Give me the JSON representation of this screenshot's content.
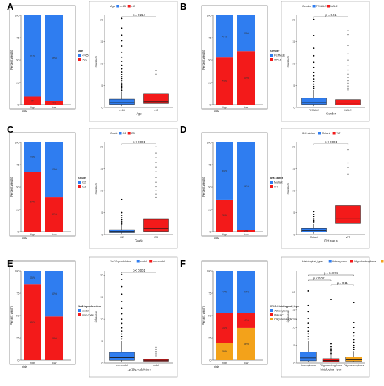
{
  "colors": {
    "blue": "#2f7df0",
    "red": "#f31a1a",
    "orange": "#f3a21a",
    "axis": "#333333",
    "box_outline": "#1a1a1a",
    "outlier": "#000000"
  },
  "panels": [
    {
      "letter": "A",
      "stack": {
        "x_title": "risk",
        "y_title": "Percent weight",
        "categories": [
          "high",
          "low"
        ],
        "legend_title": "Age",
        "legend_items": [
          {
            "label": "<=65",
            "color": "#2f7df0"
          },
          {
            "label": ">65",
            "color": "#f31a1a"
          }
        ],
        "yticks": [
          "0",
          "25",
          "50",
          "75",
          "100"
        ],
        "series": [
          {
            "name": ">65",
            "values": [
              9,
              4
            ],
            "labels": [
              "9%",
              "4%"
            ],
            "color": "#f31a1a"
          },
          {
            "name": "<=65",
            "values": [
              91,
              96
            ],
            "labels": [
              "91%",
              "96%"
            ],
            "color": "#2f7df0"
          }
        ]
      },
      "box": {
        "top_legend_title": "Age",
        "top_legend_items": [
          {
            "label": "<=65",
            "color": "#2f7df0"
          },
          {
            "label": ">65",
            "color": "#f31a1a"
          }
        ],
        "pvalue": "p = 0.214",
        "x_title": "Age",
        "y_title": "riskscore",
        "categories": [
          "<=65",
          ">65"
        ],
        "ylim": [
          0,
          21
        ],
        "yticks": [
          0,
          5,
          10,
          15,
          20
        ],
        "boxes": [
          {
            "q1": 0.7,
            "median": 1.1,
            "q3": 1.9,
            "wlo": 0.3,
            "whi": 3.6,
            "color": "#2f7df0",
            "outliers": [
              3.9,
              4.2,
              4.5,
              4.8,
              5.1,
              5.4,
              5.8,
              6.2,
              6.6,
              7.0,
              7.5,
              8.1,
              8.8,
              9.6,
              10.5,
              11.5,
              12.6,
              14.0,
              15.2,
              16.5,
              18.1,
              20.3
            ]
          },
          {
            "q1": 0.9,
            "median": 1.3,
            "q3": 3.2,
            "wlo": 0.3,
            "whi": 6.6,
            "color": "#f31a1a",
            "outliers": [
              7.6,
              8.4
            ]
          }
        ]
      }
    },
    {
      "letter": "B",
      "stack": {
        "x_title": "risk",
        "y_title": "Percent weight",
        "categories": [
          "high",
          "low"
        ],
        "legend_title": "Gender",
        "legend_items": [
          {
            "label": "FEMALE",
            "color": "#2f7df0"
          },
          {
            "label": "MALE",
            "color": "#f31a1a"
          }
        ],
        "yticks": [
          "0",
          "25",
          "50",
          "75",
          "100"
        ],
        "series": [
          {
            "name": "MALE",
            "values": [
              53,
              60
            ],
            "labels": [
              "53%",
              "60%"
            ],
            "color": "#f31a1a"
          },
          {
            "name": "FEMALE",
            "values": [
              47,
              40
            ],
            "labels": [
              "47%",
              "40%"
            ],
            "color": "#2f7df0"
          }
        ]
      },
      "box": {
        "top_legend_title": "Gender",
        "top_legend_items": [
          {
            "label": "FEMALE",
            "color": "#2f7df0"
          },
          {
            "label": "MALE",
            "color": "#f31a1a"
          }
        ],
        "pvalue": "p = 0.51",
        "x_title": "Gender",
        "y_title": "riskscore",
        "categories": [
          "FEMALE",
          "MALE"
        ],
        "ylim": [
          0,
          21
        ],
        "yticks": [
          0,
          5,
          10,
          15,
          20
        ],
        "boxes": [
          {
            "q1": 0.7,
            "median": 1.1,
            "q3": 2.1,
            "wlo": 0.3,
            "whi": 4.0,
            "color": "#2f7df0",
            "outliers": [
              4.4,
              4.8,
              5.3,
              5.9,
              6.5,
              7.2,
              8.0,
              9.1,
              10.3,
              11.8,
              13.5,
              16.4,
              20.1
            ]
          },
          {
            "q1": 0.6,
            "median": 1.0,
            "q3": 1.8,
            "wlo": 0.3,
            "whi": 3.6,
            "color": "#f31a1a",
            "outliers": [
              4.0,
              4.4,
              4.9,
              5.5,
              6.1,
              6.8,
              7.6,
              8.5,
              9.5,
              10.8,
              12.2,
              14.1,
              16.6,
              17.5
            ]
          }
        ]
      }
    },
    {
      "letter": "C",
      "stack": {
        "x_title": "risk",
        "y_title": "Percent weight",
        "categories": [
          "high",
          "low"
        ],
        "legend_title": "Grade",
        "legend_items": [
          {
            "label": "G2",
            "color": "#2f7df0"
          },
          {
            "label": "G3",
            "color": "#f31a1a"
          }
        ],
        "yticks": [
          "0",
          "25",
          "50",
          "75",
          "100"
        ],
        "series": [
          {
            "name": "G3",
            "values": [
              67,
              39
            ],
            "labels": [
              "67%",
              "39%"
            ],
            "color": "#f31a1a"
          },
          {
            "name": "G2",
            "values": [
              33,
              61
            ],
            "labels": [
              "33%",
              "61%"
            ],
            "color": "#2f7df0"
          }
        ]
      },
      "box": {
        "top_legend_title": "Grade",
        "top_legend_items": [
          {
            "label": "G2",
            "color": "#2f7df0"
          },
          {
            "label": "G3",
            "color": "#f31a1a"
          }
        ],
        "pvalue": "p < 0.001",
        "x_title": "Grade",
        "y_title": "riskscore",
        "categories": [
          "G2",
          "G3"
        ],
        "ylim": [
          0,
          21
        ],
        "yticks": [
          0,
          5,
          10,
          15,
          20
        ],
        "boxes": [
          {
            "q1": 0.4,
            "median": 0.7,
            "q3": 1.1,
            "wlo": 0.2,
            "whi": 2.1,
            "color": "#2f7df0",
            "outliers": [
              2.4,
              2.7,
              3.0,
              3.4,
              3.8,
              4.3,
              5.0,
              8.0
            ]
          },
          {
            "q1": 0.7,
            "median": 1.4,
            "q3": 3.5,
            "wlo": 0.2,
            "whi": 7.8,
            "color": "#f31a1a",
            "outliers": [
              8.5,
              9.2,
              10.0,
              10.9,
              11.9,
              13.0,
              14.3,
              15.4,
              16.4,
              17.5,
              18.6,
              20.0
            ]
          }
        ]
      }
    },
    {
      "letter": "D",
      "stack": {
        "x_title": "risk",
        "y_title": "Percent weight",
        "categories": [
          "high",
          "low"
        ],
        "legend_title": "IDH.status",
        "legend_items": [
          {
            "label": "Mutant",
            "color": "#2f7df0"
          },
          {
            "label": "WT",
            "color": "#f31a1a"
          }
        ],
        "yticks": [
          "0",
          "25",
          "50",
          "75",
          "100"
        ],
        "series": [
          {
            "name": "WT",
            "values": [
              36,
              2
            ],
            "labels": [
              "36%",
              "2%"
            ],
            "color": "#f31a1a"
          },
          {
            "name": "Mutant",
            "values": [
              64,
              98
            ],
            "labels": [
              "64%",
              "98%"
            ],
            "color": "#2f7df0"
          }
        ]
      },
      "box": {
        "top_legend_title": "IDH.status",
        "top_legend_items": [
          {
            "label": "Mutant",
            "color": "#2f7df0"
          },
          {
            "label": "WT",
            "color": "#f31a1a"
          }
        ],
        "pvalue": "p < 0.001",
        "x_title": "IDH.status",
        "y_title": "riskscore",
        "categories": [
          "Mutant",
          "WT"
        ],
        "ylim": [
          0,
          21
        ],
        "yticks": [
          0,
          5,
          10,
          15,
          20
        ],
        "boxes": [
          {
            "q1": 0.6,
            "median": 0.9,
            "q3": 1.4,
            "wlo": 0.2,
            "whi": 2.4,
            "color": "#2f7df0",
            "outliers": [
              2.7,
              3.0,
              3.3,
              3.7,
              4.1,
              4.6,
              5.2
            ]
          },
          {
            "q1": 2.5,
            "median": 3.7,
            "q3": 6.6,
            "wlo": 0.3,
            "whi": 12.3,
            "color": "#f31a1a",
            "outliers": [
              13.8,
              15.3,
              16.3,
              19.3,
              20.6
            ]
          }
        ]
      }
    },
    {
      "letter": "E",
      "stack": {
        "x_title": "risk",
        "y_title": "Percent weight",
        "categories": [
          "high",
          "low"
        ],
        "legend_title": "1p/19q.codeletion",
        "legend_items": [
          {
            "label": "codel",
            "color": "#2f7df0"
          },
          {
            "label": "non-codel",
            "color": "#f31a1a"
          }
        ],
        "yticks": [
          "0",
          "25",
          "50",
          "75",
          "100"
        ],
        "series": [
          {
            "name": "non-codel",
            "values": [
              85,
              49
            ],
            "labels": [
              "85%",
              "49%"
            ],
            "color": "#f31a1a"
          },
          {
            "name": "codel",
            "values": [
              15,
              51
            ],
            "labels": [
              "15%",
              "51%"
            ],
            "color": "#2f7df0"
          }
        ]
      },
      "box": {
        "top_legend_title": "1p/19q.codeletion",
        "top_legend_items": [
          {
            "label": "codel",
            "color": "#2f7df0"
          },
          {
            "label": "non-codel",
            "color": "#f31a1a"
          }
        ],
        "pvalue": "p < 0.001",
        "x_title": "1p/19q.codeletion",
        "y_title": "riskscore",
        "categories": [
          "non-codel",
          "codel"
        ],
        "ylim": [
          0,
          21
        ],
        "yticks": [
          0,
          5,
          10,
          15,
          20
        ],
        "boxes": [
          {
            "q1": 0.6,
            "median": 1.2,
            "q3": 2.4,
            "wlo": 0.2,
            "whi": 5.0,
            "color": "#2f7df0",
            "outliers": [
              5.5,
              6.0,
              6.6,
              7.3,
              8.0,
              9.0,
              10.0,
              11.2,
              12.5,
              14.0,
              15.7,
              17.4,
              19.1,
              20.2
            ]
          },
          {
            "q1": 0.4,
            "median": 0.6,
            "q3": 0.8,
            "wlo": 0.2,
            "whi": 1.3,
            "color": "#f31a1a",
            "outliers": [
              1.6,
              1.9,
              2.2,
              2.6,
              3.1,
              3.6
            ]
          }
        ]
      }
    },
    {
      "letter": "F",
      "stack": {
        "x_title": "risk",
        "y_title": "Percent weight",
        "categories": [
          "high",
          "low"
        ],
        "legend_title": "WHO.histological_type",
        "legend_items": [
          {
            "label": "Astrocytoma",
            "color": "#2f7df0"
          },
          {
            "label": "IDH-WT",
            "color": "#f31a1a"
          },
          {
            "label": "Oligodendroglioma",
            "color": "#f3a21a"
          }
        ],
        "yticks": [
          "0",
          "25",
          "50",
          "75",
          "100"
        ],
        "series": [
          {
            "name": "Oligodendroglioma",
            "values": [
              19,
              36
            ],
            "labels": [
              "19%",
              "36%"
            ],
            "color": "#f3a21a"
          },
          {
            "name": "IDH-WT",
            "values": [
              34,
              17
            ],
            "labels": [
              "34%",
              "17%"
            ],
            "color": "#f31a1a"
          },
          {
            "name": "Astrocytoma",
            "values": [
              47,
              47
            ],
            "labels": [
              "47%",
              "47%"
            ],
            "color": "#2f7df0"
          }
        ]
      },
      "box": {
        "top_legend_title": "Histological_type",
        "top_legend_items": [
          {
            "label": "Astrocytoma",
            "color": "#2f7df0"
          },
          {
            "label": "Oligodendroglioma",
            "color": "#f31a1a"
          },
          {
            "label": "Oligoastrocytoma",
            "color": "#f3a21a"
          }
        ],
        "pvalue": "",
        "comparisons": [
          {
            "label": "p < 0.001",
            "from": 0,
            "to": 1,
            "level": 1
          },
          {
            "label": "p = 0.0039",
            "from": 0,
            "to": 2,
            "level": 0
          },
          {
            "label": "p = 0.11",
            "from": 1,
            "to": 2,
            "level": 2
          }
        ],
        "x_title": "histological_type",
        "y_title": "riskscore",
        "categories": [
          "Astrocytoma",
          "Oligodendroglioma",
          "Oligoastrocytoma"
        ],
        "ylim": [
          0,
          26
        ],
        "yticks": [
          0,
          5,
          10,
          15,
          20
        ],
        "boxes": [
          {
            "q1": 0.6,
            "median": 1.4,
            "q3": 3.0,
            "wlo": 0.2,
            "whi": 6.1,
            "color": "#2f7df0",
            "outliers": [
              6.8,
              7.5,
              8.2,
              9.0,
              10.0,
              11.2,
              12.6,
              14.5,
              16.2,
              20.3
            ]
          },
          {
            "q1": 0.4,
            "median": 0.7,
            "q3": 1.2,
            "wlo": 0.2,
            "whi": 2.3,
            "color": "#f31a1a",
            "outliers": [
              2.6,
              3.0,
              3.4,
              3.9,
              4.6,
              5.4,
              17.9
            ]
          },
          {
            "q1": 0.5,
            "median": 0.9,
            "q3": 1.7,
            "wlo": 0.2,
            "whi": 3.3,
            "color": "#f3a21a",
            "outliers": [
              3.8,
              4.4,
              5.0,
              5.8,
              6.6,
              7.6,
              8.6,
              10.0,
              11.4,
              17.1
            ]
          }
        ]
      }
    }
  ]
}
